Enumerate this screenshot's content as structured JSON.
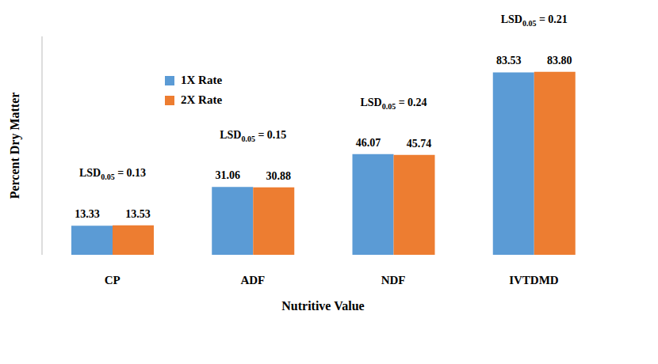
{
  "chart_data": {
    "type": "bar",
    "categories": [
      "CP",
      "ADF",
      "NDF",
      "IVTDMD"
    ],
    "series": [
      {
        "name": "1X Rate",
        "color": "#5b9bd5",
        "values": [
          13.33,
          31.06,
          46.07,
          83.53
        ],
        "value_labels": [
          "13.33",
          "31.06",
          "46.07",
          "83.53"
        ]
      },
      {
        "name": "2X Rate",
        "color": "#ed7d31",
        "values": [
          13.53,
          30.88,
          45.74,
          83.8
        ],
        "value_labels": [
          "13.53",
          "30.88",
          "45.74",
          "83.80"
        ]
      }
    ],
    "x_label": "Nutritive Value",
    "y_label": "Percent Dry Matter",
    "ylim": [
      0,
      100
    ],
    "tick_labels": "x",
    "grid": false,
    "data_labels": true,
    "legend": "upper left",
    "annotations": [
      {
        "category": "CP",
        "text": "LSD0.05 = 0.13"
      },
      {
        "category": "ADF",
        "text": "LSD0.05 = 0.15"
      },
      {
        "category": "NDF",
        "text": "LSD0.05 = 0.24"
      },
      {
        "category": "IVTDMD",
        "text": "LSD0.05 = 0.21"
      }
    ]
  }
}
